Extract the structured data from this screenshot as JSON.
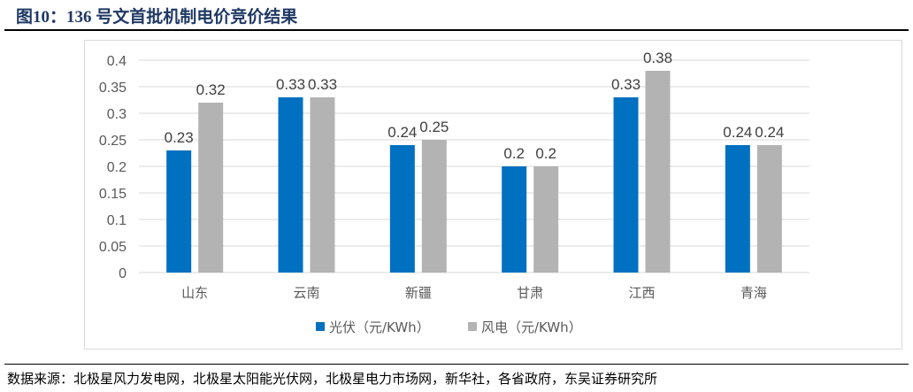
{
  "title": "图10：136 号文首批机制电价竞价结果",
  "source": "数据来源：北极星风力发电网，北极星太阳能光伏网，北极星电力市场网，新华社，各省政府，东吴证券研究所",
  "chart_data": {
    "type": "bar",
    "title": "",
    "xlabel": "",
    "ylabel": "",
    "categories": [
      "山东",
      "云南",
      "新疆",
      "甘肃",
      "江西",
      "青海"
    ],
    "series": [
      {
        "name": "光伏（元/KWh）",
        "values": [
          0.23,
          0.33,
          0.24,
          0.2,
          0.33,
          0.24
        ],
        "color": "#0070c0"
      },
      {
        "name": "风电（元/KWh）",
        "values": [
          0.32,
          0.33,
          0.25,
          0.2,
          0.38,
          0.24
        ],
        "color": "#b3b3b3"
      }
    ],
    "ylim": [
      0,
      0.4
    ],
    "yticks": [
      "0",
      "0.05",
      "0.1",
      "0.15",
      "0.2",
      "0.25",
      "0.3",
      "0.35",
      "0.4"
    ],
    "grid": true,
    "legend": "bottom",
    "data_labels": true
  }
}
